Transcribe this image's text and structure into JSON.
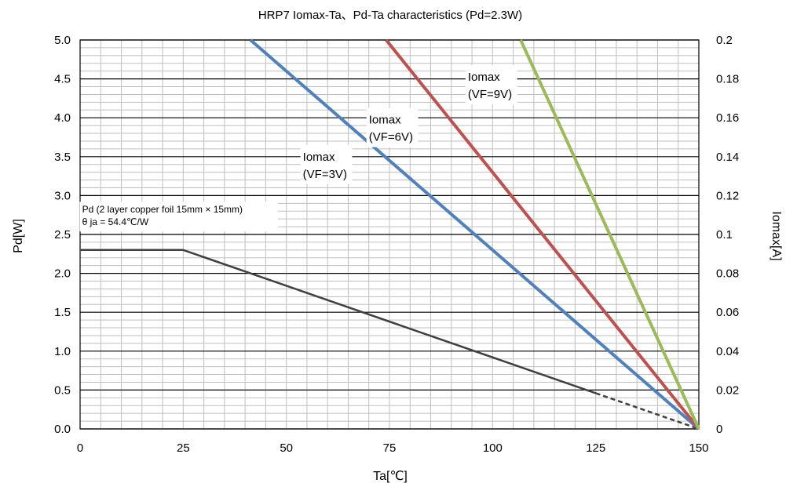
{
  "chart_data": {
    "type": "line",
    "title": "HRP7  Iomax-Ta、Pd-Ta characteristics (Pd=2.3W)",
    "xlabel": "Ta[℃]",
    "ylabel": "Pd[W]",
    "y2label": "Iomax[A]",
    "xlim": [
      0,
      150
    ],
    "ylim": [
      0,
      5.0
    ],
    "y2lim": [
      0,
      0.2
    ],
    "x_ticks": [
      0,
      25,
      50,
      75,
      100,
      125,
      150
    ],
    "x_tick_labels": [
      "0",
      "25",
      "50",
      "75",
      "100",
      "125",
      "150"
    ],
    "y_ticks": [
      0,
      0.5,
      1.0,
      1.5,
      2.0,
      2.5,
      3.0,
      3.5,
      4.0,
      4.5,
      5.0
    ],
    "y_tick_labels": [
      "0.0",
      "0.5",
      "1.0",
      "1.5",
      "2.0",
      "2.5",
      "3.0",
      "3.5",
      "4.0",
      "4.5",
      "5.0"
    ],
    "y2_ticks": [
      0,
      0.02,
      0.04,
      0.06,
      0.08,
      0.1,
      0.12,
      0.14,
      0.16,
      0.18,
      0.2
    ],
    "y2_tick_labels": [
      "0",
      "0.02",
      "0.04",
      "0.06",
      "0.08",
      "0.1",
      "0.12",
      "0.14",
      "0.16",
      "0.18",
      "0.2"
    ],
    "grid": true,
    "series": [
      {
        "name": "Pd",
        "axis": "left",
        "color": "#404040",
        "x": [
          0,
          25,
          125
        ],
        "y": [
          2.3,
          2.3,
          0.46
        ],
        "dashed_extension": {
          "x": [
            125,
            150
          ],
          "y": [
            0.46,
            0
          ]
        }
      },
      {
        "name": "Iomax (VF=3V)",
        "axis": "right",
        "color": "#4f81bd",
        "x": [
          41.3,
          150
        ],
        "y": [
          0.2,
          0
        ]
      },
      {
        "name": "Iomax (VF=6V)",
        "axis": "right",
        "color": "#c0504d",
        "x": [
          74.2,
          150
        ],
        "y": [
          0.2,
          0
        ]
      },
      {
        "name": "Iomax (VF=9V)",
        "axis": "right",
        "color": "#9bbb59",
        "x": [
          106.8,
          150
        ],
        "y": [
          0.2,
          0
        ]
      }
    ],
    "annotations": [
      {
        "lines": [
          "Iomax",
          "(VF=9V)"
        ],
        "x": 94,
        "y2": 0.179
      },
      {
        "lines": [
          "Iomax",
          "(VF=6V)"
        ],
        "x": 70,
        "y2": 0.157
      },
      {
        "lines": [
          "Iomax",
          "(VF=3V)"
        ],
        "x": 54,
        "y2": 0.138
      },
      {
        "lines": [
          "Pd (2 layer copper foil  15mm × 15mm)",
          "θ ja = 54.4℃/W"
        ],
        "x": 0.5,
        "y": 2.78,
        "small": true
      }
    ]
  }
}
